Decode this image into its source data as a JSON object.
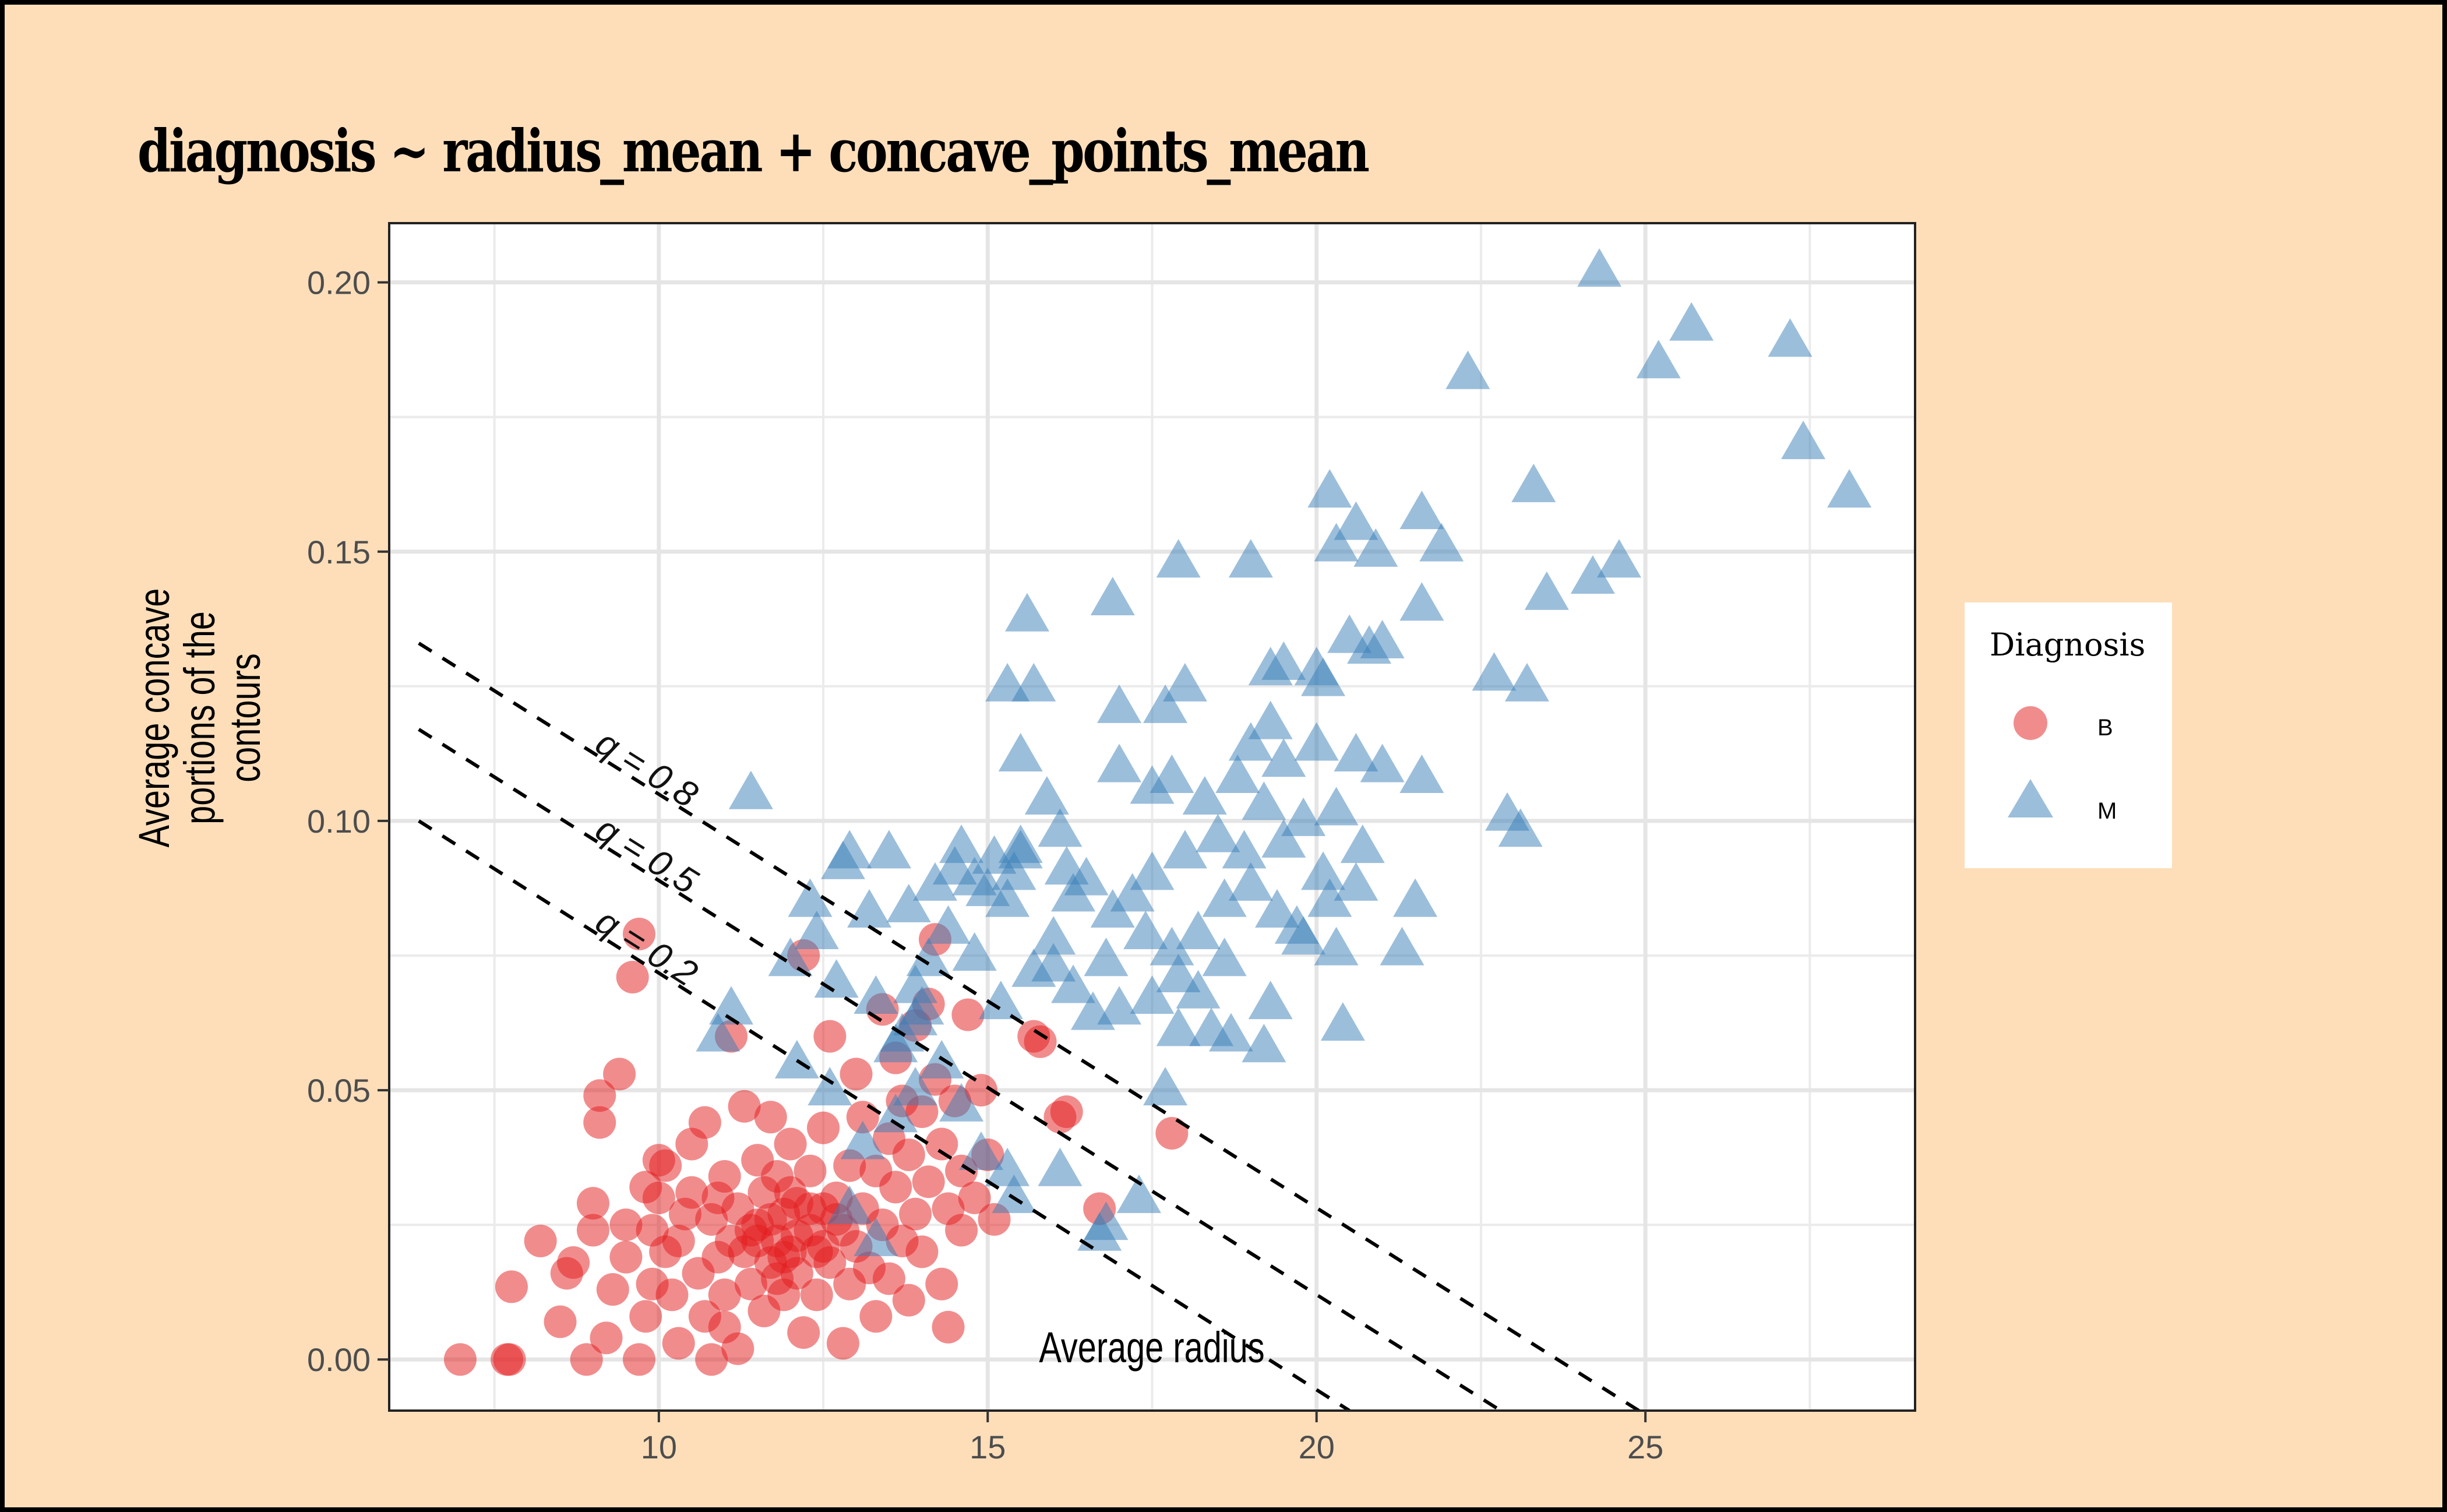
{
  "chart_data": {
    "type": "scatter",
    "title": "diagnosis ~ radius_mean + concave_points_mean",
    "xlabel": "Average radius",
    "ylabel_lines": [
      "Average concave",
      "portions of the",
      "contours"
    ],
    "xlim": [
      5.9,
      29.1
    ],
    "ylim": [
      -0.0095,
      0.211
    ],
    "x_ticks": [
      10,
      15,
      20,
      25
    ],
    "x_tick_labels": [
      "10",
      "15",
      "20",
      "25"
    ],
    "y_ticks": [
      0.0,
      0.05,
      0.1,
      0.15,
      0.2
    ],
    "y_tick_labels": [
      "0.00",
      "0.05",
      "0.10",
      "0.15",
      "0.20"
    ],
    "grid": true,
    "legend": {
      "title": "Diagnosis",
      "placement": "right",
      "entries": [
        {
          "label": "B",
          "shape": "circle",
          "color": "#E41A1C"
        },
        {
          "label": "M",
          "shape": "triangle",
          "color": "#377EB8"
        }
      ]
    },
    "quantile_lines": [
      {
        "label": "q = 0.8",
        "x": [
          6.35,
          24.9
        ],
        "y": [
          0.133,
          -0.0095
        ]
      },
      {
        "label": "q = 0.5",
        "x": [
          6.35,
          22.8
        ],
        "y": [
          0.117,
          -0.0095
        ]
      },
      {
        "label": "q = 0.2",
        "x": [
          6.35,
          20.5
        ],
        "y": [
          0.1,
          -0.0095
        ]
      }
    ],
    "series": [
      {
        "name": "B",
        "points": [
          [
            6.98,
            0.0
          ],
          [
            7.69,
            0.0
          ],
          [
            7.73,
            0.0
          ],
          [
            7.76,
            0.0135
          ],
          [
            8.2,
            0.022
          ],
          [
            8.6,
            0.016
          ],
          [
            8.9,
            0.0
          ],
          [
            9.0,
            0.029
          ],
          [
            9.1,
            0.044
          ],
          [
            9.1,
            0.049
          ],
          [
            9.4,
            0.053
          ],
          [
            9.7,
            0.079
          ],
          [
            9.6,
            0.071
          ],
          [
            8.5,
            0.007
          ],
          [
            8.7,
            0.018
          ],
          [
            9.0,
            0.024
          ],
          [
            9.2,
            0.004
          ],
          [
            9.3,
            0.013
          ],
          [
            9.5,
            0.019
          ],
          [
            9.7,
            0.0
          ],
          [
            9.8,
            0.008
          ],
          [
            9.9,
            0.014
          ],
          [
            9.9,
            0.024
          ],
          [
            10.0,
            0.037
          ],
          [
            10.0,
            0.03
          ],
          [
            10.1,
            0.02
          ],
          [
            10.2,
            0.012
          ],
          [
            10.3,
            0.003
          ],
          [
            10.3,
            0.022
          ],
          [
            10.5,
            0.04
          ],
          [
            10.5,
            0.031
          ],
          [
            10.6,
            0.016
          ],
          [
            10.7,
            0.008
          ],
          [
            10.8,
            0.0
          ],
          [
            10.8,
            0.026
          ],
          [
            10.9,
            0.019
          ],
          [
            11.0,
            0.012
          ],
          [
            11.0,
            0.034
          ],
          [
            11.1,
            0.06
          ],
          [
            11.2,
            0.028
          ],
          [
            11.2,
            0.002
          ],
          [
            11.3,
            0.047
          ],
          [
            11.3,
            0.02
          ],
          [
            11.4,
            0.014
          ],
          [
            11.5,
            0.037
          ],
          [
            11.5,
            0.025
          ],
          [
            11.6,
            0.031
          ],
          [
            11.6,
            0.009
          ],
          [
            11.7,
            0.045
          ],
          [
            11.7,
            0.018
          ],
          [
            11.8,
            0.022
          ],
          [
            11.8,
            0.034
          ],
          [
            11.9,
            0.027
          ],
          [
            11.9,
            0.012
          ],
          [
            12.0,
            0.04
          ],
          [
            12.0,
            0.02
          ],
          [
            12.1,
            0.016
          ],
          [
            12.1,
            0.029
          ],
          [
            12.2,
            0.075
          ],
          [
            12.2,
            0.005
          ],
          [
            12.3,
            0.024
          ],
          [
            12.3,
            0.035
          ],
          [
            12.4,
            0.02
          ],
          [
            12.4,
            0.012
          ],
          [
            12.5,
            0.028
          ],
          [
            12.5,
            0.043
          ],
          [
            12.6,
            0.06
          ],
          [
            12.6,
            0.018
          ],
          [
            12.7,
            0.03
          ],
          [
            12.8,
            0.024
          ],
          [
            12.8,
            0.003
          ],
          [
            12.9,
            0.036
          ],
          [
            12.9,
            0.014
          ],
          [
            13.0,
            0.053
          ],
          [
            13.0,
            0.021
          ],
          [
            13.1,
            0.028
          ],
          [
            13.1,
            0.045
          ],
          [
            13.2,
            0.017
          ],
          [
            13.3,
            0.035
          ],
          [
            13.3,
            0.008
          ],
          [
            13.4,
            0.065
          ],
          [
            13.4,
            0.025
          ],
          [
            13.5,
            0.041
          ],
          [
            13.5,
            0.015
          ],
          [
            13.6,
            0.032
          ],
          [
            13.6,
            0.056
          ],
          [
            13.7,
            0.022
          ],
          [
            13.7,
            0.048
          ],
          [
            13.8,
            0.038
          ],
          [
            13.8,
            0.011
          ],
          [
            13.9,
            0.027
          ],
          [
            13.9,
            0.062
          ],
          [
            14.0,
            0.046
          ],
          [
            14.0,
            0.02
          ],
          [
            14.1,
            0.033
          ],
          [
            14.1,
            0.066
          ],
          [
            14.2,
            0.052
          ],
          [
            14.2,
            0.078
          ],
          [
            14.3,
            0.04
          ],
          [
            14.3,
            0.014
          ],
          [
            14.4,
            0.028
          ],
          [
            14.4,
            0.006
          ],
          [
            14.5,
            0.048
          ],
          [
            14.6,
            0.035
          ],
          [
            14.6,
            0.024
          ],
          [
            14.7,
            0.064
          ],
          [
            14.8,
            0.03
          ],
          [
            14.9,
            0.05
          ],
          [
            15.0,
            0.038
          ],
          [
            15.1,
            0.026
          ],
          [
            15.7,
            0.06
          ],
          [
            15.8,
            0.059
          ],
          [
            16.1,
            0.045
          ],
          [
            16.2,
            0.046
          ],
          [
            16.7,
            0.028
          ],
          [
            17.8,
            0.042
          ],
          [
            11.5,
            0.022
          ],
          [
            11.7,
            0.026
          ],
          [
            11.9,
            0.019
          ],
          [
            12.1,
            0.023
          ],
          [
            12.3,
            0.028
          ],
          [
            12.0,
            0.031
          ],
          [
            11.8,
            0.015
          ],
          [
            12.5,
            0.021
          ],
          [
            12.7,
            0.026
          ],
          [
            11.4,
            0.024
          ],
          [
            11.1,
            0.022
          ],
          [
            10.9,
            0.03
          ],
          [
            10.4,
            0.027
          ],
          [
            10.1,
            0.036
          ],
          [
            10.7,
            0.044
          ],
          [
            11.0,
            0.006
          ],
          [
            9.5,
            0.025
          ],
          [
            9.8,
            0.032
          ]
        ]
      },
      {
        "name": "M",
        "points": [
          [
            11.4,
            0.105
          ],
          [
            11.1,
            0.065
          ],
          [
            10.9,
            0.06
          ],
          [
            12.3,
            0.085
          ],
          [
            12.9,
            0.094
          ],
          [
            12.8,
            0.092
          ],
          [
            13.5,
            0.094
          ],
          [
            13.2,
            0.083
          ],
          [
            12.4,
            0.079
          ],
          [
            12.7,
            0.07
          ],
          [
            12.0,
            0.074
          ],
          [
            13.3,
            0.067
          ],
          [
            13.8,
            0.084
          ],
          [
            14.2,
            0.088
          ],
          [
            14.5,
            0.091
          ],
          [
            14.6,
            0.095
          ],
          [
            14.8,
            0.089
          ],
          [
            15.0,
            0.087
          ],
          [
            15.1,
            0.093
          ],
          [
            15.3,
            0.085
          ],
          [
            15.4,
            0.09
          ],
          [
            15.5,
            0.094
          ],
          [
            15.6,
            0.138
          ],
          [
            15.3,
            0.125
          ],
          [
            15.7,
            0.125
          ],
          [
            15.5,
            0.112
          ],
          [
            15.9,
            0.104
          ],
          [
            16.2,
            0.091
          ],
          [
            16.3,
            0.086
          ],
          [
            16.5,
            0.089
          ],
          [
            16.0,
            0.078
          ],
          [
            15.7,
            0.072
          ],
          [
            15.2,
            0.066
          ],
          [
            14.8,
            0.075
          ],
          [
            14.4,
            0.08
          ],
          [
            14.0,
            0.065
          ],
          [
            13.9,
            0.063
          ],
          [
            13.7,
            0.06
          ],
          [
            13.6,
            0.058
          ],
          [
            13.9,
            0.05
          ],
          [
            14.3,
            0.055
          ],
          [
            14.6,
            0.047
          ],
          [
            14.9,
            0.038
          ],
          [
            15.3,
            0.035
          ],
          [
            15.4,
            0.03
          ],
          [
            16.1,
            0.035
          ],
          [
            16.8,
            0.025
          ],
          [
            17.3,
            0.03
          ],
          [
            12.9,
            0.028
          ],
          [
            13.3,
            0.022
          ],
          [
            13.6,
            0.045
          ],
          [
            13.1,
            0.04
          ],
          [
            12.6,
            0.05
          ],
          [
            12.1,
            0.055
          ],
          [
            16.9,
            0.141
          ],
          [
            17.9,
            0.148
          ],
          [
            19.0,
            0.148
          ],
          [
            20.2,
            0.161
          ],
          [
            20.3,
            0.151
          ],
          [
            20.6,
            0.155
          ],
          [
            20.9,
            0.15
          ],
          [
            21.6,
            0.157
          ],
          [
            21.9,
            0.151
          ],
          [
            21.6,
            0.14
          ],
          [
            20.5,
            0.134
          ],
          [
            20.8,
            0.132
          ],
          [
            21.0,
            0.133
          ],
          [
            19.3,
            0.128
          ],
          [
            19.5,
            0.129
          ],
          [
            20.0,
            0.128
          ],
          [
            20.1,
            0.126
          ],
          [
            18.0,
            0.125
          ],
          [
            17.0,
            0.121
          ],
          [
            17.7,
            0.121
          ],
          [
            17.0,
            0.11
          ],
          [
            17.5,
            0.106
          ],
          [
            17.8,
            0.108
          ],
          [
            18.3,
            0.104
          ],
          [
            18.8,
            0.108
          ],
          [
            19.0,
            0.114
          ],
          [
            19.3,
            0.118
          ],
          [
            19.5,
            0.111
          ],
          [
            20.0,
            0.114
          ],
          [
            20.6,
            0.112
          ],
          [
            21.0,
            0.11
          ],
          [
            21.6,
            0.108
          ],
          [
            19.2,
            0.103
          ],
          [
            19.8,
            0.1
          ],
          [
            20.3,
            0.102
          ],
          [
            20.7,
            0.095
          ],
          [
            20.1,
            0.09
          ],
          [
            19.5,
            0.096
          ],
          [
            18.9,
            0.094
          ],
          [
            18.5,
            0.097
          ],
          [
            18.0,
            0.094
          ],
          [
            17.5,
            0.09
          ],
          [
            17.2,
            0.086
          ],
          [
            16.9,
            0.083
          ],
          [
            17.4,
            0.079
          ],
          [
            17.8,
            0.076
          ],
          [
            18.2,
            0.079
          ],
          [
            18.6,
            0.085
          ],
          [
            19.0,
            0.088
          ],
          [
            19.4,
            0.083
          ],
          [
            19.7,
            0.08
          ],
          [
            20.2,
            0.085
          ],
          [
            20.6,
            0.088
          ],
          [
            21.5,
            0.085
          ],
          [
            19.8,
            0.078
          ],
          [
            20.3,
            0.076
          ],
          [
            18.6,
            0.074
          ],
          [
            18.2,
            0.068
          ],
          [
            17.9,
            0.071
          ],
          [
            17.5,
            0.067
          ],
          [
            17.0,
            0.065
          ],
          [
            16.6,
            0.064
          ],
          [
            16.3,
            0.069
          ],
          [
            16.0,
            0.073
          ],
          [
            16.8,
            0.074
          ],
          [
            18.7,
            0.06
          ],
          [
            19.2,
            0.058
          ],
          [
            19.3,
            0.066
          ],
          [
            18.4,
            0.061
          ],
          [
            17.9,
            0.061
          ],
          [
            17.7,
            0.05
          ],
          [
            20.4,
            0.062
          ],
          [
            22.3,
            0.183
          ],
          [
            24.3,
            0.202
          ],
          [
            25.2,
            0.185
          ],
          [
            25.7,
            0.192
          ],
          [
            27.2,
            0.189
          ],
          [
            27.4,
            0.17
          ],
          [
            28.1,
            0.161
          ],
          [
            23.3,
            0.162
          ],
          [
            24.6,
            0.148
          ],
          [
            23.5,
            0.142
          ],
          [
            23.2,
            0.125
          ],
          [
            22.9,
            0.101
          ],
          [
            23.1,
            0.098
          ],
          [
            22.7,
            0.127
          ],
          [
            24.2,
            0.145
          ],
          [
            21.3,
            0.076
          ],
          [
            16.7,
            0.023
          ],
          [
            15.5,
            0.095
          ],
          [
            16.1,
            0.098
          ],
          [
            14.1,
            0.074
          ],
          [
            13.9,
            0.069
          ]
        ]
      }
    ]
  }
}
